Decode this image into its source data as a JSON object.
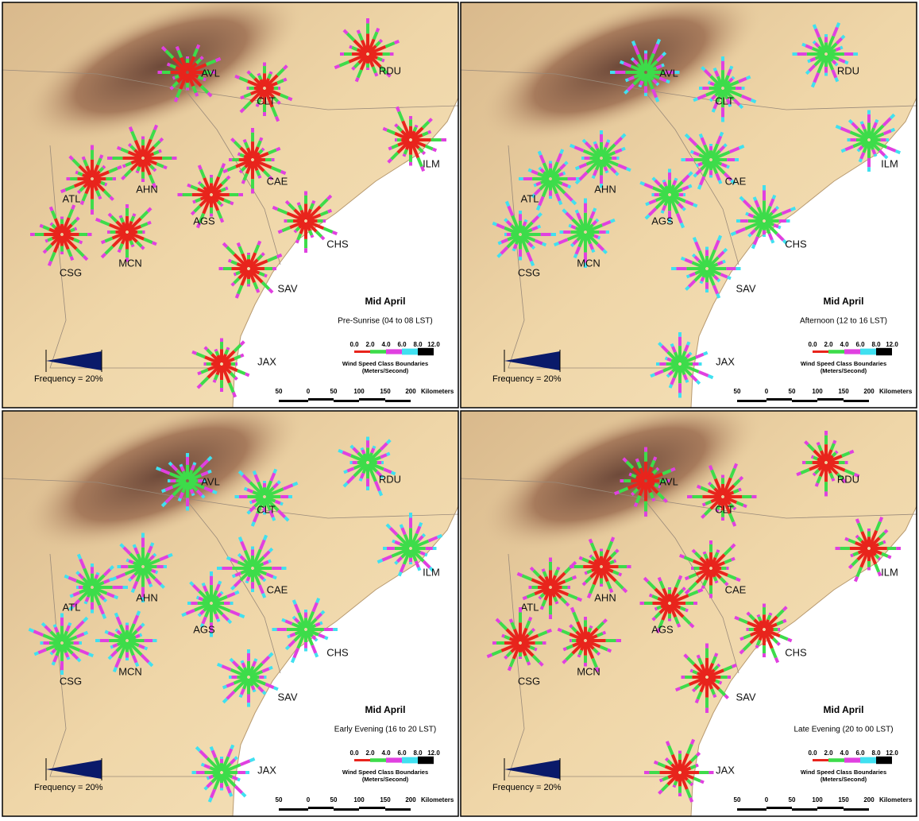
{
  "stations": [
    "AVL",
    "CLT",
    "RDU",
    "ILM",
    "ATL",
    "AHN",
    "CAE",
    "AGS",
    "CHS",
    "CSG",
    "MCN",
    "SAV",
    "JAX"
  ],
  "panels": [
    {
      "title": "Mid April",
      "period": "Pre-Sunrise (04 to 08 LST)"
    },
    {
      "title": "Mid April",
      "period": "Afternoon (12 to 16 LST)"
    },
    {
      "title": "Mid April",
      "period": "Early Evening (16 to 20 LST)"
    },
    {
      "title": "Mid April",
      "period": "Late Evening (20 to 00 LST)"
    }
  ],
  "legend": {
    "frequency": "Frequency = 20%",
    "speed_classes": [
      "0.0",
      "2.0",
      "4.0",
      "6.0",
      "8.0",
      "12.0"
    ],
    "speed_title": "Wind Speed Class Boundaries",
    "speed_units": "(Meters/Second)",
    "scale_labels": [
      "50",
      "0",
      "50",
      "100",
      "150",
      "200"
    ],
    "scale_unit": "Kilometers"
  }
}
